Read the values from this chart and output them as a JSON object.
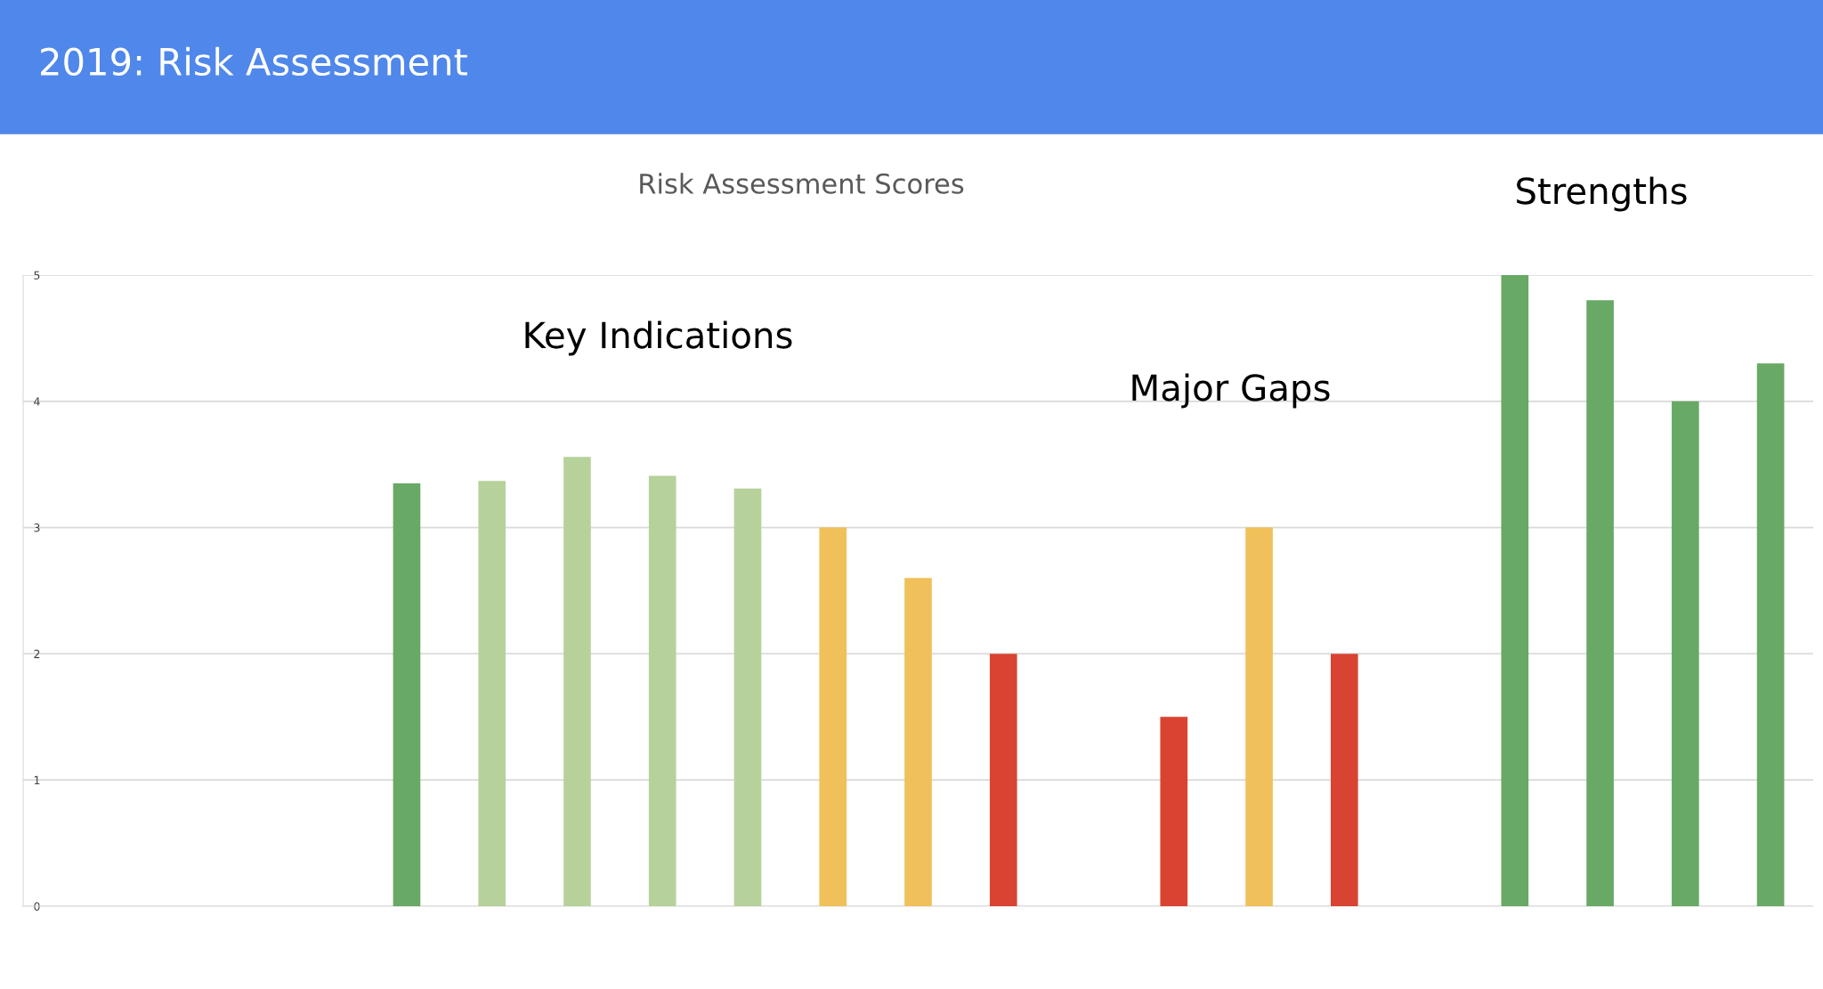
{
  "chart_data": {
    "type": "bar",
    "title": "2019: Risk Assessment",
    "subtitle": "Risk Assessment Scores",
    "annotations": [
      "Key Indications",
      "Major Gaps",
      "Strengths"
    ],
    "categories": [
      null,
      null,
      null,
      null,
      null,
      null,
      null,
      null,
      null,
      null,
      null,
      null,
      null,
      null,
      null,
      null,
      null,
      null,
      null,
      null,
      null
    ],
    "values": [
      null,
      null,
      null,
      null,
      3.35,
      3.37,
      3.56,
      3.41,
      3.31,
      3.0,
      2.6,
      2.0,
      null,
      1.5,
      3.0,
      2.0,
      null,
      5.0,
      4.8,
      4.0,
      4.3
    ],
    "colors": [
      "#67a965",
      "#67a965",
      "#67a965",
      "#67a965",
      "#67a965",
      "#b7d19b",
      "#b7d19b",
      "#b7d19b",
      "#b7d19b",
      "#f0c05a",
      "#f0c05a",
      "#d94332",
      "#d94332",
      "#d94332",
      "#f0c05a",
      "#d94332",
      "#67a965",
      "#67a965",
      "#67a965",
      "#67a965",
      "#67a965"
    ],
    "ylim": [
      0,
      5
    ],
    "yticks": [
      0,
      1,
      2,
      3,
      4,
      5
    ],
    "grid": "y"
  }
}
